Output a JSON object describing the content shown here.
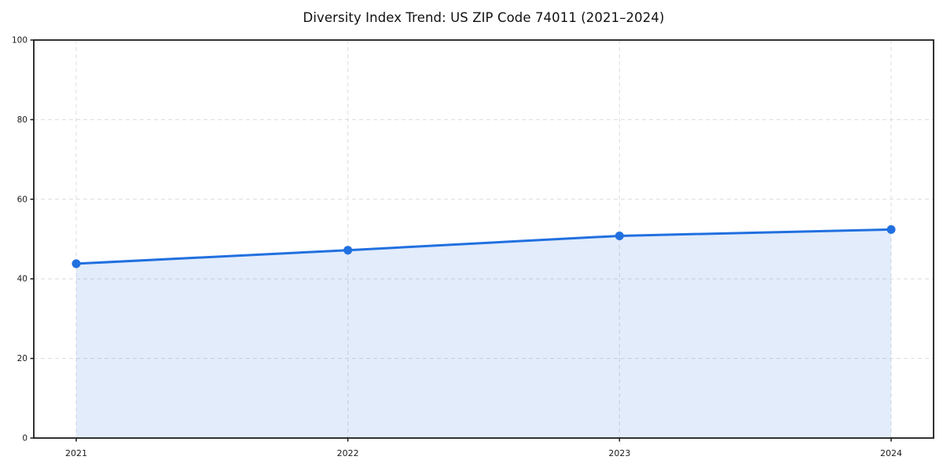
{
  "chart_data": {
    "type": "line",
    "title": "Diversity Index Trend: US ZIP Code 74011 (2021–2024)",
    "categories": [
      "2021",
      "2022",
      "2023",
      "2024"
    ],
    "series": [
      {
        "name": "Diversity Index",
        "values": [
          43.8,
          47.2,
          50.8,
          52.4
        ]
      }
    ],
    "xlabel": "",
    "ylabel": "",
    "ylim": [
      0,
      100
    ],
    "yticks": [
      0,
      20,
      40,
      60,
      80,
      100
    ],
    "grid": true,
    "grid_style": "dashed",
    "legend": false,
    "area_fill": true,
    "marker": "circle",
    "colors": {
      "line": "#2170e0",
      "marker": "#2170e0",
      "area_fill": "rgba(33,112,224,0.13)",
      "grid": "#dcdcdc",
      "spine": "#1c1c1c",
      "tick_text": "#1a1a1a",
      "title_text": "#111111",
      "background": "#ffffff"
    }
  }
}
